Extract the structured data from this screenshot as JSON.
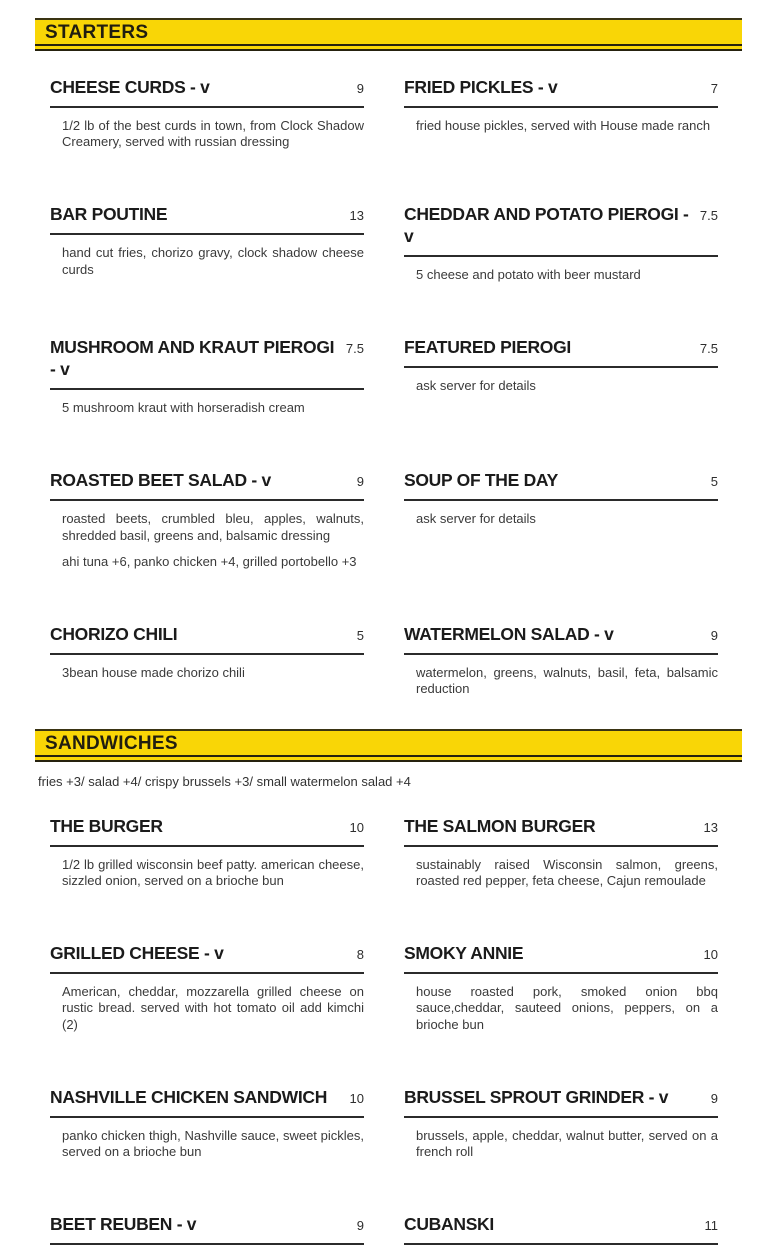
{
  "page": {
    "accent_yellow": "#F9D606",
    "rule_color": "#26220e",
    "underline_color": "#2b2b2b"
  },
  "sections": [
    {
      "title": "STARTERS",
      "items": [
        {
          "name": "CHEESE CURDS - v",
          "price": "9",
          "descriptions": [
            "1/2 lb of the best curds in town, from Clock Shadow Creamery, served with russian dressing"
          ]
        },
        {
          "name": "FRIED PICKLES - v",
          "price": "7",
          "descriptions": [
            "fried house pickles, served with House made ranch"
          ]
        },
        {
          "name": "BAR POUTINE",
          "price": "13",
          "descriptions": [
            "hand cut fries, chorizo gravy, clock shadow cheese curds"
          ]
        },
        {
          "name": "CHEDDAR AND POTATO PIEROGI - v",
          "price": "7.5",
          "descriptions": [
            "5 cheese and potato with beer mustard"
          ]
        },
        {
          "name": "MUSHROOM AND KRAUT PIEROGI - v",
          "price": "7.5",
          "descriptions": [
            "5 mushroom kraut with horseradish cream"
          ]
        },
        {
          "name": "FEATURED PIEROGI",
          "price": "7.5",
          "descriptions": [
            "ask server for details"
          ]
        },
        {
          "name": "ROASTED BEET SALAD - v",
          "price": "9",
          "descriptions": [
            "roasted beets, crumbled bleu, apples, walnuts, shredded basil, greens and, balsamic dressing",
            "ahi tuna +6, panko chicken +4, grilled portobello +3"
          ]
        },
        {
          "name": "SOUP OF THE DAY",
          "price": "5",
          "descriptions": [
            "ask server for details"
          ]
        },
        {
          "name": "CHORIZO CHILI",
          "price": "5",
          "descriptions": [
            "3bean house made chorizo chili"
          ]
        },
        {
          "name": "WATERMELON SALAD - v",
          "price": "9",
          "descriptions": [
            "watermelon, greens, walnuts, basil, feta, balsamic reduction"
          ]
        }
      ]
    },
    {
      "title": "SANDWICHES",
      "note": "fries +3/ salad +4/ crispy brussels +3/ small watermelon salad +4",
      "items": [
        {
          "name": "THE BURGER",
          "price": "10",
          "descriptions": [
            "1/2 lb grilled wisconsin beef patty. american cheese, sizzled onion, served on a brioche bun"
          ]
        },
        {
          "name": "THE SALMON BURGER",
          "price": "13",
          "descriptions": [
            "sustainably raised Wisconsin salmon, greens, roasted red pepper, feta cheese, Cajun remoulade"
          ]
        },
        {
          "name": "GRILLED CHEESE - v",
          "price": "8",
          "descriptions": [
            "American, cheddar, mozzarella grilled cheese on rustic bread. served with hot tomato oil add kimchi (2)"
          ]
        },
        {
          "name": "SMOKY ANNIE",
          "price": "10",
          "descriptions": [
            "house roasted pork, smoked onion bbq sauce,cheddar, sauteed onions, peppers, on a brioche bun"
          ]
        },
        {
          "name": "NASHVILLE CHICKEN SANDWICH",
          "price": "10",
          "descriptions": [
            "panko chicken thigh, Nashville sauce, sweet pickles, served on a brioche bun"
          ]
        },
        {
          "name": "BRUSSEL SPROUT GRINDER - v",
          "price": "9",
          "descriptions": [
            "brussels, apple, cheddar, walnut butter, served on a french roll"
          ]
        },
        {
          "name": "BEET REUBEN - v",
          "price": "9",
          "descriptions": []
        },
        {
          "name": "CUBANSKI",
          "price": "11",
          "descriptions": []
        }
      ]
    }
  ]
}
